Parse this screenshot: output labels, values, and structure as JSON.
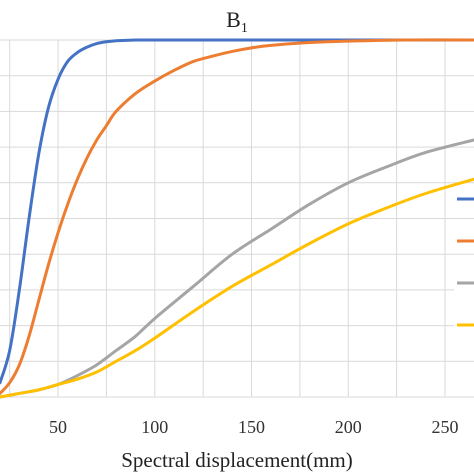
{
  "chart_data": {
    "type": "line",
    "title": "B",
    "title_subscript": "1",
    "xlabel": "Spectral displacement(mm)",
    "ylabel": "",
    "xlim": [
      20,
      265
    ],
    "ylim": [
      0,
      1
    ],
    "xticks": [
      50,
      100,
      150,
      200,
      250
    ],
    "grid": true,
    "legend_position": "right",
    "colors": [
      "#4472C4",
      "#ED7D31",
      "#A5A5A5",
      "#FFC000"
    ],
    "series": [
      {
        "color": "#4472C4",
        "x": [
          20,
          25,
          30,
          35,
          40,
          45,
          50,
          55,
          60,
          65,
          70,
          75,
          80,
          85,
          90,
          95,
          100,
          110,
          120,
          140,
          160,
          200,
          265
        ],
        "y": [
          0.04,
          0.13,
          0.3,
          0.5,
          0.68,
          0.81,
          0.89,
          0.94,
          0.965,
          0.98,
          0.99,
          0.995,
          0.998,
          0.999,
          1.0,
          1.0,
          1.0,
          1.0,
          1.0,
          1.0,
          1.0,
          1.0,
          1.0
        ]
      },
      {
        "color": "#ED7D31",
        "x": [
          20,
          25,
          30,
          35,
          40,
          45,
          50,
          55,
          60,
          65,
          70,
          75,
          80,
          90,
          100,
          110,
          120,
          130,
          140,
          150,
          160,
          180,
          200,
          230,
          265
        ],
        "y": [
          0.01,
          0.04,
          0.09,
          0.17,
          0.27,
          0.37,
          0.46,
          0.54,
          0.61,
          0.67,
          0.72,
          0.76,
          0.8,
          0.85,
          0.885,
          0.915,
          0.94,
          0.955,
          0.968,
          0.978,
          0.985,
          0.993,
          0.997,
          1.0,
          1.0
        ]
      },
      {
        "color": "#A5A5A5",
        "x": [
          20,
          30,
          40,
          50,
          60,
          70,
          80,
          90,
          100,
          120,
          140,
          160,
          180,
          200,
          220,
          240,
          265
        ],
        "y": [
          0.0,
          0.01,
          0.02,
          0.035,
          0.06,
          0.09,
          0.13,
          0.17,
          0.22,
          0.31,
          0.4,
          0.47,
          0.54,
          0.6,
          0.645,
          0.685,
          0.72
        ]
      },
      {
        "color": "#FFC000",
        "x": [
          20,
          30,
          40,
          50,
          60,
          70,
          80,
          90,
          100,
          120,
          140,
          160,
          180,
          200,
          220,
          240,
          265
        ],
        "y": [
          0.0,
          0.01,
          0.02,
          0.035,
          0.05,
          0.07,
          0.1,
          0.13,
          0.165,
          0.24,
          0.31,
          0.37,
          0.43,
          0.485,
          0.53,
          0.57,
          0.61
        ]
      }
    ]
  }
}
